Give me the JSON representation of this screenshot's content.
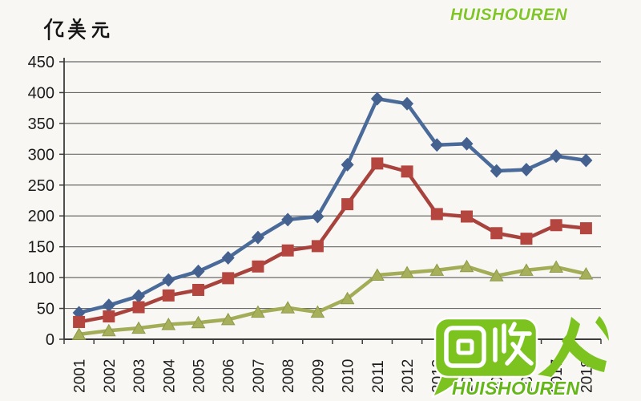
{
  "page": {
    "background": "#f8f7f4"
  },
  "chart_data": {
    "type": "line",
    "title": "",
    "ylabel": "亿美元",
    "xlabel": "",
    "ylim": [
      0,
      450
    ],
    "y_ticks": [
      0,
      50,
      100,
      150,
      200,
      250,
      300,
      350,
      400,
      450
    ],
    "grid": "horizontal",
    "legend": "none",
    "categories": [
      "2001",
      "2002",
      "2003",
      "2004",
      "2005",
      "2006",
      "2007",
      "2008",
      "2009",
      "2010",
      "2011",
      "2012",
      "2013",
      "2014",
      "2015",
      "2016",
      "2017",
      "2018"
    ],
    "series": [
      {
        "name": "series-blue-diamond",
        "marker": "diamond",
        "color": "#44618f",
        "line_color": "#4a6a99",
        "values": [
          43,
          55,
          70,
          96,
          110,
          132,
          165,
          194,
          199,
          283,
          390,
          382,
          315,
          317,
          273,
          275,
          297,
          290
        ]
      },
      {
        "name": "series-red-square",
        "marker": "square",
        "color": "#b5453f",
        "line_color": "#a8423d",
        "values": [
          28,
          37,
          52,
          71,
          80,
          99,
          118,
          144,
          151,
          219,
          285,
          272,
          203,
          199,
          172,
          163,
          185,
          180
        ]
      },
      {
        "name": "series-green-triangle",
        "marker": "triangle",
        "color": "#a6af59",
        "line_color": "#a3ac56",
        "values": [
          8,
          14,
          18,
          24,
          27,
          32,
          44,
          51,
          44,
          66,
          104,
          108,
          112,
          118,
          103,
          112,
          117,
          106
        ]
      }
    ]
  },
  "watermark": {
    "logo_text": "回收",
    "person_text": "人",
    "brand_name": "HUISHOUREN",
    "brand_name_top": "HUISHOUREN",
    "color": "#7cc31f"
  }
}
